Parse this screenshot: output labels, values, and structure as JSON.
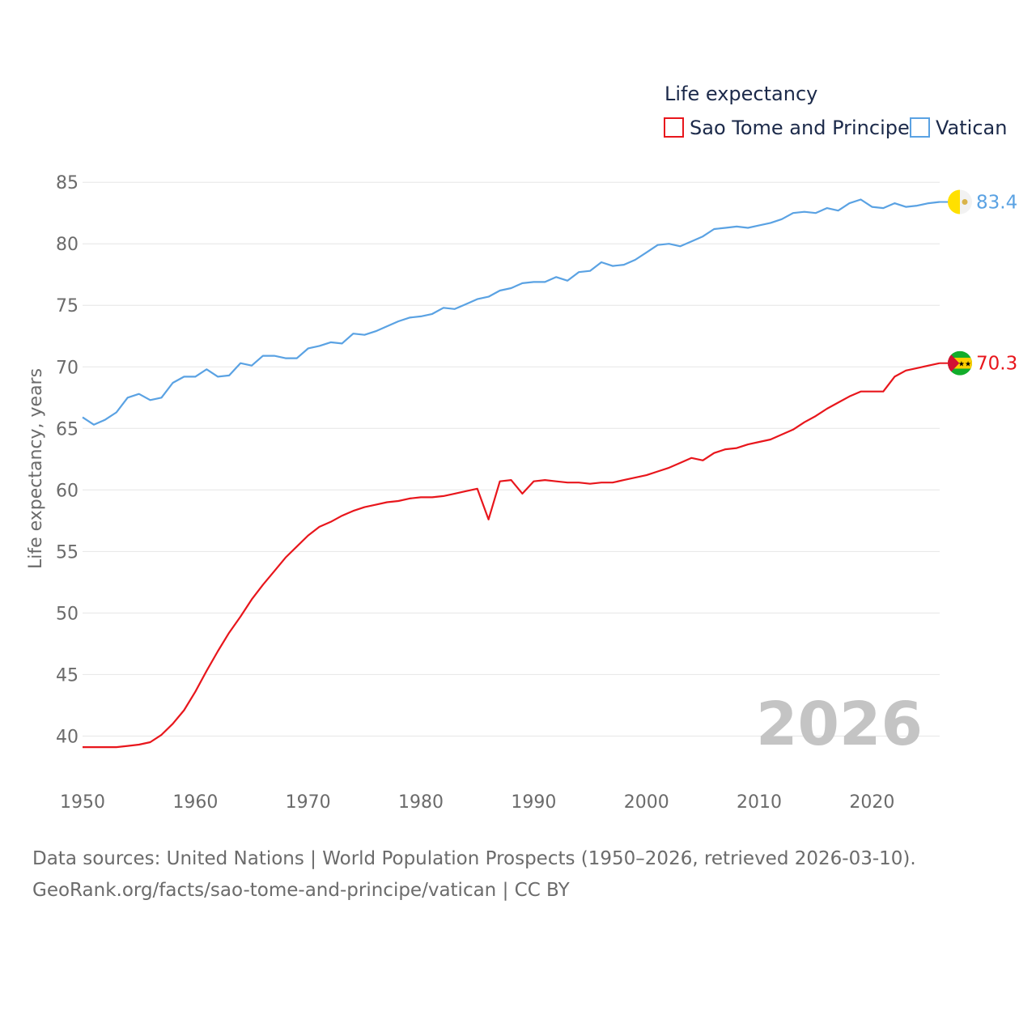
{
  "chart_data": {
    "type": "line",
    "legend_title": "Life expectancy",
    "ylabel": "Life expectancy, years",
    "xlabel": "",
    "ylim": [
      37,
      86
    ],
    "xlim": [
      1950,
      2026
    ],
    "yticks": [
      40,
      45,
      50,
      55,
      60,
      65,
      70,
      75,
      80,
      85
    ],
    "xticks": [
      1950,
      1960,
      1970,
      1980,
      1990,
      2000,
      2010,
      2020
    ],
    "legend_position": "top-right",
    "grid": true,
    "year_label": "2026",
    "x": [
      1950,
      1951,
      1952,
      1953,
      1954,
      1955,
      1956,
      1957,
      1958,
      1959,
      1960,
      1961,
      1962,
      1963,
      1964,
      1965,
      1966,
      1967,
      1968,
      1969,
      1970,
      1971,
      1972,
      1973,
      1974,
      1975,
      1976,
      1977,
      1978,
      1979,
      1980,
      1981,
      1982,
      1983,
      1984,
      1985,
      1986,
      1987,
      1988,
      1989,
      1990,
      1991,
      1992,
      1993,
      1994,
      1995,
      1996,
      1997,
      1998,
      1999,
      2000,
      2001,
      2002,
      2003,
      2004,
      2005,
      2006,
      2007,
      2008,
      2009,
      2010,
      2011,
      2012,
      2013,
      2014,
      2015,
      2016,
      2017,
      2018,
      2019,
      2020,
      2021,
      2022,
      2023,
      2024,
      2025,
      2026
    ],
    "series": [
      {
        "name": "Sao Tome and Principe",
        "color": "#e8161c",
        "end_label": "70.3",
        "flag_icon": "sao-tome-flag-icon",
        "values": [
          39.1,
          39.1,
          39.1,
          39.1,
          39.2,
          39.3,
          39.5,
          40.1,
          41.0,
          42.1,
          43.6,
          45.3,
          46.9,
          48.4,
          49.7,
          51.1,
          52.3,
          53.4,
          54.5,
          55.4,
          56.3,
          57.0,
          57.4,
          57.9,
          58.3,
          58.6,
          58.8,
          59.0,
          59.1,
          59.3,
          59.4,
          59.4,
          59.5,
          59.7,
          59.9,
          60.1,
          57.6,
          60.7,
          60.8,
          59.7,
          60.7,
          60.8,
          60.7,
          60.6,
          60.6,
          60.5,
          60.6,
          60.6,
          60.8,
          61.0,
          61.2,
          61.5,
          61.8,
          62.2,
          62.6,
          62.4,
          63.0,
          63.3,
          63.4,
          63.7,
          63.9,
          64.1,
          64.5,
          64.9,
          65.5,
          66.0,
          66.6,
          67.1,
          67.6,
          68.0,
          68.0,
          68.0,
          69.2,
          69.7,
          69.9,
          70.1,
          70.3
        ]
      },
      {
        "name": "Vatican",
        "color": "#5aa2e3",
        "end_label": "83.4",
        "flag_icon": "vatican-flag-icon",
        "values": [
          65.9,
          65.3,
          65.7,
          66.3,
          67.5,
          67.8,
          67.3,
          67.5,
          68.7,
          69.2,
          69.2,
          69.8,
          69.2,
          69.3,
          70.3,
          70.1,
          70.9,
          70.9,
          70.7,
          70.7,
          71.5,
          71.7,
          72.0,
          71.9,
          72.7,
          72.6,
          72.9,
          73.3,
          73.7,
          74.0,
          74.1,
          74.3,
          74.8,
          74.7,
          75.1,
          75.5,
          75.7,
          76.2,
          76.4,
          76.8,
          76.9,
          76.9,
          77.3,
          77.0,
          77.7,
          77.8,
          78.5,
          78.2,
          78.3,
          78.7,
          79.3,
          79.9,
          80.0,
          79.8,
          80.2,
          80.6,
          81.2,
          81.3,
          81.4,
          81.3,
          81.5,
          81.7,
          82.0,
          82.5,
          82.6,
          82.5,
          82.9,
          82.7,
          83.3,
          83.6,
          83.0,
          82.9,
          83.3,
          83.0,
          83.1,
          83.3,
          83.4
        ]
      }
    ]
  },
  "footer": {
    "sources_line": "Data sources: United Nations | World Population Prospects (1950–2026, retrieved 2026-03-10).",
    "attribution_line": "GeoRank.org/facts/sao-tome-and-principe/vatican | CC BY"
  }
}
